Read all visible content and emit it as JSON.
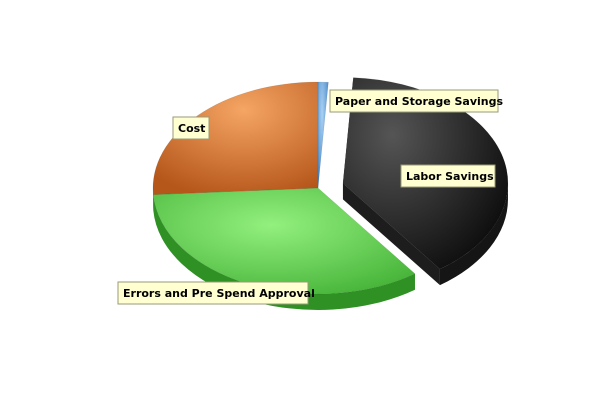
{
  "chart_data": {
    "type": "pie",
    "style": "3d-exploded",
    "title": "",
    "slices": [
      {
        "label": "Paper and Storage Savings",
        "value": 1,
        "color": "#5b9bd5"
      },
      {
        "label": "Labor Savings",
        "value": 39,
        "color": "#2a2a2a",
        "exploded": true
      },
      {
        "label": "Errors and Pre Spend Approval",
        "value": 34,
        "color": "#5fcf4f"
      },
      {
        "label": "Cost",
        "value": 26,
        "color": "#e07a2e"
      }
    ],
    "legend": "none",
    "label_style": "callout-box"
  }
}
